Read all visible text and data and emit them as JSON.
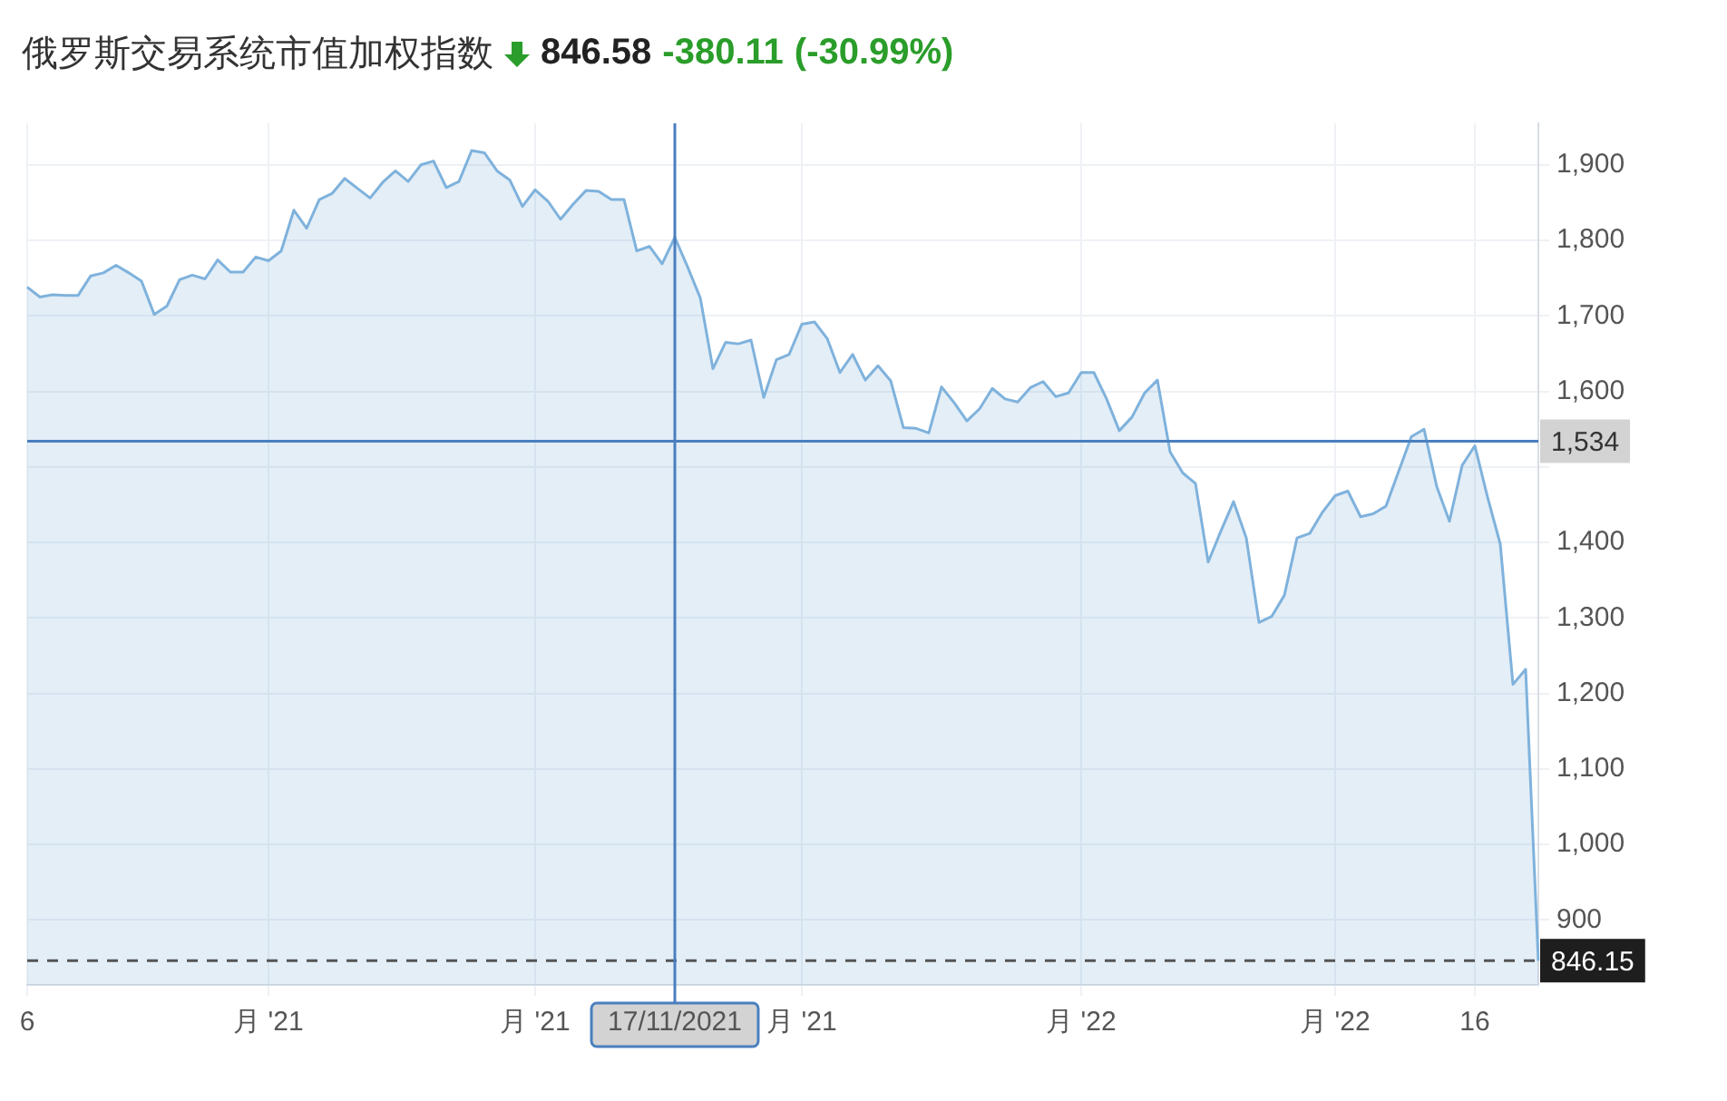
{
  "chart_data": {
    "type": "area",
    "title": "俄罗斯交易系统市值加权指数",
    "annotations": [
      "846.58",
      "-380.11",
      "(-30.99%)"
    ],
    "categories": [
      "6",
      null,
      null,
      null,
      null,
      null,
      null,
      null,
      null,
      null,
      null,
      null,
      null,
      null,
      null,
      null,
      null,
      null,
      null,
      "月 '21",
      null,
      null,
      null,
      null,
      null,
      null,
      null,
      null,
      null,
      null,
      null,
      null,
      null,
      null,
      null,
      null,
      null,
      null,
      null,
      null,
      "月 '21",
      null,
      null,
      null,
      null,
      null,
      null,
      null,
      null,
      null,
      null,
      "17/11/2021",
      null,
      null,
      null,
      null,
      null,
      null,
      null,
      null,
      null,
      "月 '21",
      null,
      null,
      null,
      null,
      null,
      null,
      null,
      null,
      null,
      null,
      null,
      null,
      null,
      null,
      null,
      null,
      null,
      null,
      null,
      null,
      null,
      "月 '22",
      null,
      null,
      null,
      null,
      null,
      null,
      null,
      null,
      null,
      null,
      null,
      null,
      null,
      null,
      null,
      null,
      null,
      null,
      null,
      "月 '22",
      null,
      null,
      null,
      null,
      null,
      null,
      null,
      null,
      null,
      null,
      "16",
      null,
      null,
      null,
      null,
      null
    ],
    "series": [
      {
        "color": "#7fb2dc",
        "values": [
          1738,
          1725,
          1728,
          1727,
          1727,
          1753,
          1757,
          1767,
          1757,
          1746,
          1702,
          1713,
          1748,
          1754,
          1749,
          1774,
          1758,
          1758,
          1778,
          1773,
          1786,
          1840,
          1816,
          1854,
          1862,
          1882,
          1869,
          1856,
          1877,
          1892,
          1878,
          1900,
          1905,
          1870,
          1878,
          1919,
          1916,
          1892,
          1880,
          1845,
          1867,
          1852,
          1828,
          1848,
          1866,
          1865,
          1854,
          1854,
          1786,
          1792,
          1769,
          1804,
          1765,
          1724,
          1630,
          1665,
          1663,
          1668,
          1592,
          1642,
          1649,
          1689,
          1692,
          1670,
          1625,
          1649,
          1615,
          1634,
          1614,
          1552,
          1551,
          1545,
          1606,
          1585,
          1561,
          1577,
          1604,
          1590,
          1586,
          1605,
          1613,
          1593,
          1598,
          1625,
          1625,
          1590,
          1548,
          1566,
          1598,
          1615,
          1520,
          1492,
          1478,
          1374,
          1415,
          1454,
          1406,
          1294,
          1302,
          1330,
          1406,
          1412,
          1440,
          1462,
          1468,
          1434,
          1438,
          1448,
          1494,
          1540,
          1550,
          1474,
          1428,
          1502,
          1528,
          1460,
          1398,
          1212,
          1232,
          846
        ]
      }
    ],
    "ylim": [
      814,
      1955
    ],
    "yticks": [
      {
        "value": 900,
        "label": "900"
      },
      {
        "value": 1000,
        "label": "1,000"
      },
      {
        "value": 1100,
        "label": "1,100"
      },
      {
        "value": 1200,
        "label": "1,200"
      },
      {
        "value": 1300,
        "label": "1,300"
      },
      {
        "value": 1400,
        "label": "1,400"
      },
      {
        "value": 1500,
        "label": null
      },
      {
        "value": 1600,
        "label": "1,600"
      },
      {
        "value": 1700,
        "label": "1,700"
      },
      {
        "value": 1800,
        "label": "1,800"
      },
      {
        "value": 1900,
        "label": "1,900"
      }
    ],
    "ref_lines": [
      {
        "axis": "y",
        "value": 1534,
        "label": "1,534",
        "color": "#4a7fbf",
        "line_style": "solid"
      },
      {
        "axis": "y",
        "value": 846.15,
        "label": "846.15",
        "color": "#555555",
        "line_style": "dashed"
      },
      {
        "axis": "x",
        "value": "17/11/2021",
        "color": "#4a7fbf",
        "line_style": "solid"
      }
    ],
    "grid": true,
    "legend": false,
    "marker": "none",
    "line_style": "solid"
  }
}
